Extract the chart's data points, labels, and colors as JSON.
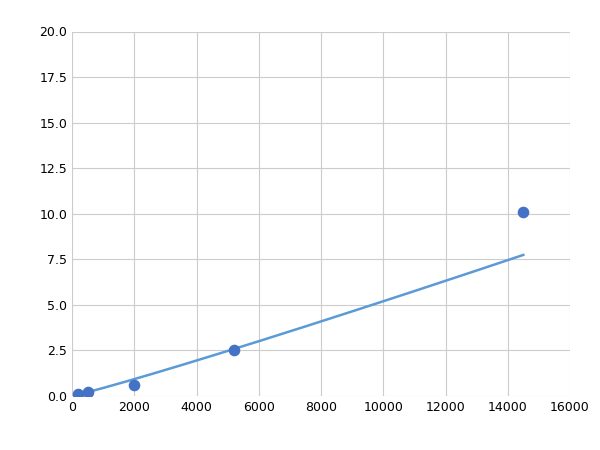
{
  "x_points": [
    200,
    500,
    2000,
    5200,
    14500
  ],
  "y_points": [
    0.1,
    0.2,
    0.6,
    2.5,
    10.1
  ],
  "line_color": "#5b9bd5",
  "marker_color": "#4472c4",
  "marker_size": 6,
  "line_width": 1.8,
  "xlim": [
    0,
    16000
  ],
  "ylim": [
    0,
    20.0
  ],
  "xticks": [
    0,
    2000,
    4000,
    6000,
    8000,
    10000,
    12000,
    14000,
    16000
  ],
  "yticks": [
    0.0,
    2.5,
    5.0,
    7.5,
    10.0,
    12.5,
    15.0,
    17.5,
    20.0
  ],
  "grid_color": "#cccccc",
  "background_color": "#ffffff",
  "fig_width": 6.0,
  "fig_height": 4.5,
  "dpi": 100
}
